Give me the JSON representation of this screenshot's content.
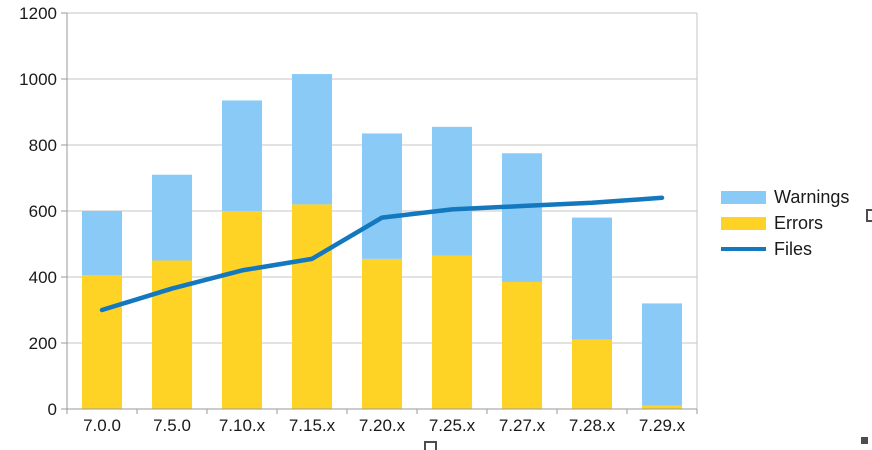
{
  "chart_data": {
    "type": "bar",
    "subtype": "stacked-bar-with-line-overlay",
    "title": "",
    "xlabel": "",
    "ylabel": "",
    "categories": [
      "7.0.0",
      "7.5.0",
      "7.10.x",
      "7.15.x",
      "7.20.x",
      "7.25.x",
      "7.27.x",
      "7.28.x",
      "7.29.x"
    ],
    "series": [
      {
        "name": "Errors",
        "kind": "bar",
        "stack_index": 0,
        "color": "#FFD326",
        "values": [
          405,
          450,
          600,
          620,
          455,
          465,
          385,
          210,
          10
        ]
      },
      {
        "name": "Warnings",
        "kind": "bar",
        "stack_index": 1,
        "color": "#89CBF6",
        "values": [
          195,
          260,
          335,
          395,
          380,
          390,
          390,
          370,
          310
        ]
      },
      {
        "name": "Files",
        "kind": "line",
        "color": "#1378BE",
        "values": [
          300,
          365,
          420,
          455,
          580,
          605,
          615,
          625,
          640
        ]
      }
    ],
    "stacked_totals": [
      600,
      710,
      935,
      1015,
      835,
      855,
      775,
      580,
      320
    ],
    "ylim": [
      0,
      1200
    ],
    "yticks": [
      0,
      200,
      400,
      600,
      800,
      1000,
      1200
    ],
    "grid": true,
    "legend_position": "right"
  },
  "legend": {
    "items": [
      {
        "label": "Warnings",
        "swatch": "rect",
        "color": "#89CBF6"
      },
      {
        "label": "Errors",
        "swatch": "rect",
        "color": "#FFD326"
      },
      {
        "label": "Files",
        "swatch": "line",
        "color": "#1378BE"
      }
    ]
  },
  "colors": {
    "background": "#FFFFFF",
    "grid": "#C6C6C6",
    "axis": "#999999",
    "text": "#1A1A1A",
    "handle": "#4D4D4D"
  },
  "icons": [
    {
      "name": "selection-handle",
      "meaning": "object selection/resize handle squares on chart edges"
    }
  ]
}
